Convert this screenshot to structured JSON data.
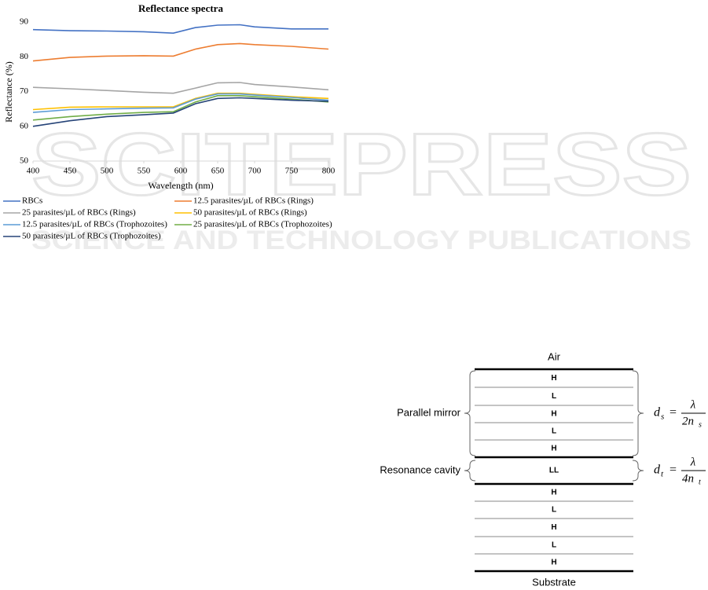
{
  "watermark": {
    "title": "SCITEPRESS",
    "subtitle": "SCIENCE AND TECHNOLOGY PUBLICATIONS"
  },
  "chart_data": {
    "type": "line",
    "title": "Reflectance spectra",
    "x_label": "Wavelength (nm)",
    "y_label": "Reflectance (%)",
    "x": [
      400,
      450,
      500,
      550,
      590,
      620,
      650,
      680,
      700,
      750,
      800
    ],
    "xlim": [
      400,
      800
    ],
    "xticks": [
      400,
      450,
      500,
      550,
      600,
      650,
      700,
      750,
      800
    ],
    "ylim": [
      50,
      90
    ],
    "yticks": [
      50,
      60,
      70,
      80,
      90
    ],
    "grid": false,
    "legend": "bottom",
    "series": [
      {
        "name": "RBCs",
        "color": "#4472c4",
        "values": [
          87.8,
          87.5,
          87.4,
          87.2,
          86.8,
          88.4,
          89.1,
          89.2,
          88.6,
          88.0,
          88.0
        ]
      },
      {
        "name": "12.5 parasites/µL of RBCs (Rings)",
        "color": "#ed7d31",
        "values": [
          78.8,
          79.8,
          80.2,
          80.3,
          80.2,
          82.2,
          83.5,
          83.8,
          83.5,
          83.0,
          82.2
        ]
      },
      {
        "name": "25 parasites/µL of RBCs (Rings)",
        "color": "#a5a5a5",
        "values": [
          71.2,
          70.8,
          70.3,
          69.8,
          69.5,
          71.0,
          72.5,
          72.6,
          72.0,
          71.3,
          70.5
        ]
      },
      {
        "name": "50 parasites/µL of RBCs (Rings)",
        "color": "#ffc000",
        "values": [
          64.8,
          65.5,
          65.6,
          65.6,
          65.6,
          68.0,
          69.5,
          69.5,
          69.2,
          68.5,
          68.0
        ]
      },
      {
        "name": "12.5 parasites/µL of RBCs (Trophozoites)",
        "color": "#5b9bd5",
        "values": [
          64.0,
          64.8,
          65.0,
          65.2,
          65.3,
          67.8,
          69.3,
          69.3,
          69.0,
          68.3,
          67.5
        ]
      },
      {
        "name": "25 parasites/µL of RBCs (Trophozoites)",
        "color": "#70ad47",
        "values": [
          61.8,
          62.8,
          63.5,
          64.0,
          64.2,
          67.0,
          68.8,
          68.8,
          68.5,
          67.8,
          67.0
        ]
      },
      {
        "name": "50 parasites/µL of RBCs (Trophozoites)",
        "color": "#264478",
        "values": [
          60.0,
          61.6,
          62.8,
          63.3,
          63.8,
          66.5,
          68.0,
          68.2,
          68.0,
          67.5,
          67.2
        ]
      }
    ]
  },
  "diagram": {
    "top_label": "Air",
    "bottom_label": "Substrate",
    "layers": [
      "H",
      "L",
      "H",
      "L",
      "H",
      "LL",
      "H",
      "L",
      "H",
      "L",
      "H"
    ],
    "groups": [
      {
        "label": "Parallel mirror",
        "formula": {
          "lhs": "d",
          "lhs_sub": "s",
          "eq": "=",
          "num": "λ",
          "den": "2n",
          "den_sub": "s"
        }
      },
      {
        "label": "Resonance cavity",
        "formula": {
          "lhs": "d",
          "lhs_sub": "t",
          "eq": "=",
          "num": "λ",
          "den": "4n",
          "den_sub": "t"
        }
      }
    ]
  }
}
